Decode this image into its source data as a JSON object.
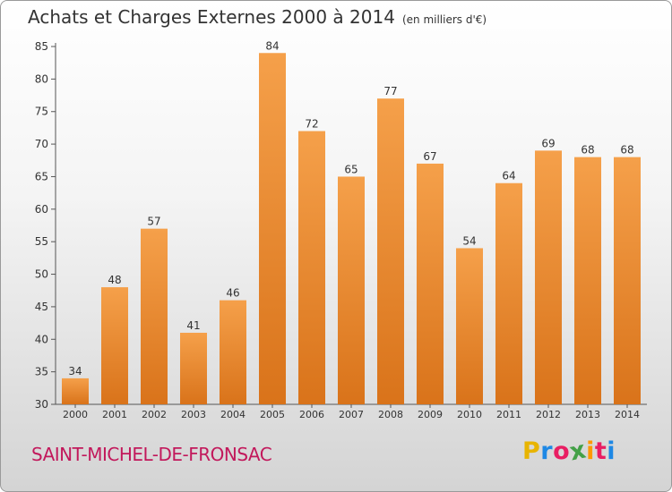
{
  "header": {
    "title": "Achats et Charges Externes 2000 à 2014",
    "subtitle": "(en milliers d'€)"
  },
  "footer": {
    "commune": "SAINT-MICHEL-DE-FRONSAC",
    "logo_letters": [
      "P",
      "r",
      "o",
      "x",
      "i",
      "t",
      "i"
    ],
    "logo_colors": [
      "#e8b400",
      "#1e88e5",
      "#e91e63",
      "#43a047",
      "#ff9800",
      "#e91e63",
      "#1e88e5"
    ]
  },
  "chart_data": {
    "type": "bar",
    "title": "Achats et Charges Externes 2000 à 2014",
    "subtitle": "(en milliers d'€)",
    "categories": [
      "2000",
      "2001",
      "2002",
      "2003",
      "2004",
      "2005",
      "2006",
      "2007",
      "2008",
      "2009",
      "2010",
      "2011",
      "2012",
      "2013",
      "2014"
    ],
    "values": [
      34,
      48,
      57,
      41,
      46,
      84,
      72,
      65,
      77,
      67,
      54,
      64,
      69,
      68,
      68
    ],
    "ylim": [
      30,
      85
    ],
    "yticks": [
      30,
      35,
      40,
      45,
      50,
      55,
      60,
      65,
      70,
      75,
      80,
      85
    ],
    "bar_color_top": "#f5a04a",
    "bar_color_bottom": "#d9731a",
    "grid": false
  }
}
